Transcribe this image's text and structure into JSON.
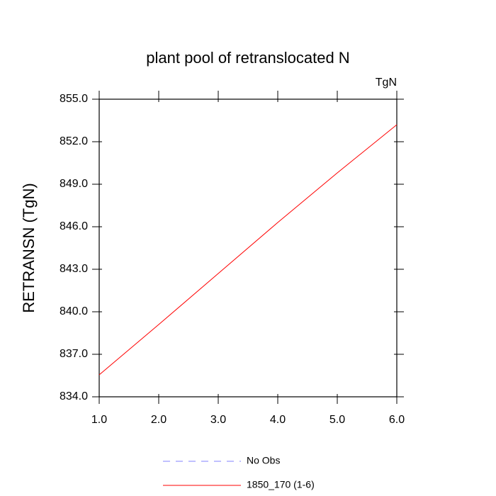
{
  "chart_data": {
    "type": "line",
    "title": "plant pool of retranslocated N",
    "units": "TgN",
    "ylabel": "RETRANSN  (TgN)",
    "x": [
      1,
      2,
      3,
      4,
      5,
      6
    ],
    "xlim": [
      1,
      6
    ],
    "xticks": [
      {
        "value": 1,
        "label": "1.0"
      },
      {
        "value": 2,
        "label": "2.0"
      },
      {
        "value": 3,
        "label": "3.0"
      },
      {
        "value": 4,
        "label": "4.0"
      },
      {
        "value": 5,
        "label": "5.0"
      },
      {
        "value": 6,
        "label": "6.0"
      }
    ],
    "ylim": [
      834,
      855
    ],
    "yticks": [
      {
        "value": 834,
        "label": "834.0"
      },
      {
        "value": 837,
        "label": "837.0"
      },
      {
        "value": 840,
        "label": "840.0"
      },
      {
        "value": 843,
        "label": "843.0"
      },
      {
        "value": 846,
        "label": "846.0"
      },
      {
        "value": 849,
        "label": "849.0"
      },
      {
        "value": 852,
        "label": "852.0"
      },
      {
        "value": 855,
        "label": "855.0"
      }
    ],
    "series": [
      {
        "name": "No Obs",
        "color": "#8080ff",
        "dashed": true,
        "values": [
          null,
          null,
          null,
          null,
          null,
          null
        ]
      },
      {
        "name": "1850_170 (1-6)",
        "color": "#ff0000",
        "dashed": false,
        "values": [
          835.55,
          839.1,
          842.7,
          846.3,
          849.8,
          853.2
        ]
      }
    ]
  }
}
